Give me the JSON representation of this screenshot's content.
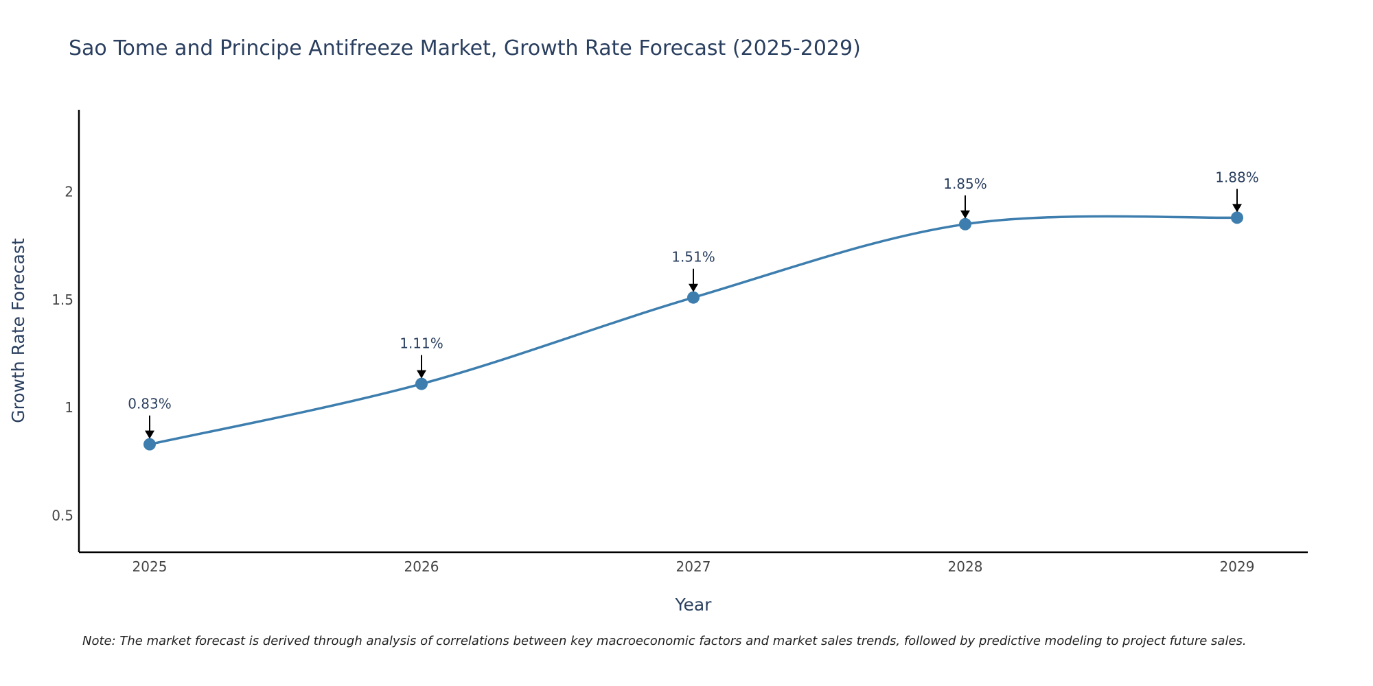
{
  "chart_data": {
    "type": "line",
    "title": "Sao Tome and Principe Antifreeze Market, Growth Rate Forecast (2025-2029)",
    "xlabel": "Year",
    "ylabel": "Growth Rate Forecast",
    "categories": [
      "2025",
      "2026",
      "2027",
      "2028",
      "2029"
    ],
    "x_tick_labels": [
      "2025",
      "2026",
      "2027",
      "2028",
      "2029"
    ],
    "values": [
      0.83,
      1.11,
      1.51,
      1.85,
      1.88
    ],
    "data_labels": [
      "0.83%",
      "1.11%",
      "1.51%",
      "1.85%",
      "1.88%"
    ],
    "y_ticks": [
      0.5,
      1,
      1.5,
      2
    ],
    "y_tick_labels": [
      "0.5",
      "1",
      "1.5",
      "2"
    ],
    "ylim": [
      0.33,
      2.38
    ],
    "line_color": "#3d7eae",
    "marker_color": "#3d7eae",
    "grid": false,
    "note": "Note: The market forecast is derived through analysis of correlations between key macroeconomic factors and market sales trends, followed by predictive modeling to project future sales."
  }
}
